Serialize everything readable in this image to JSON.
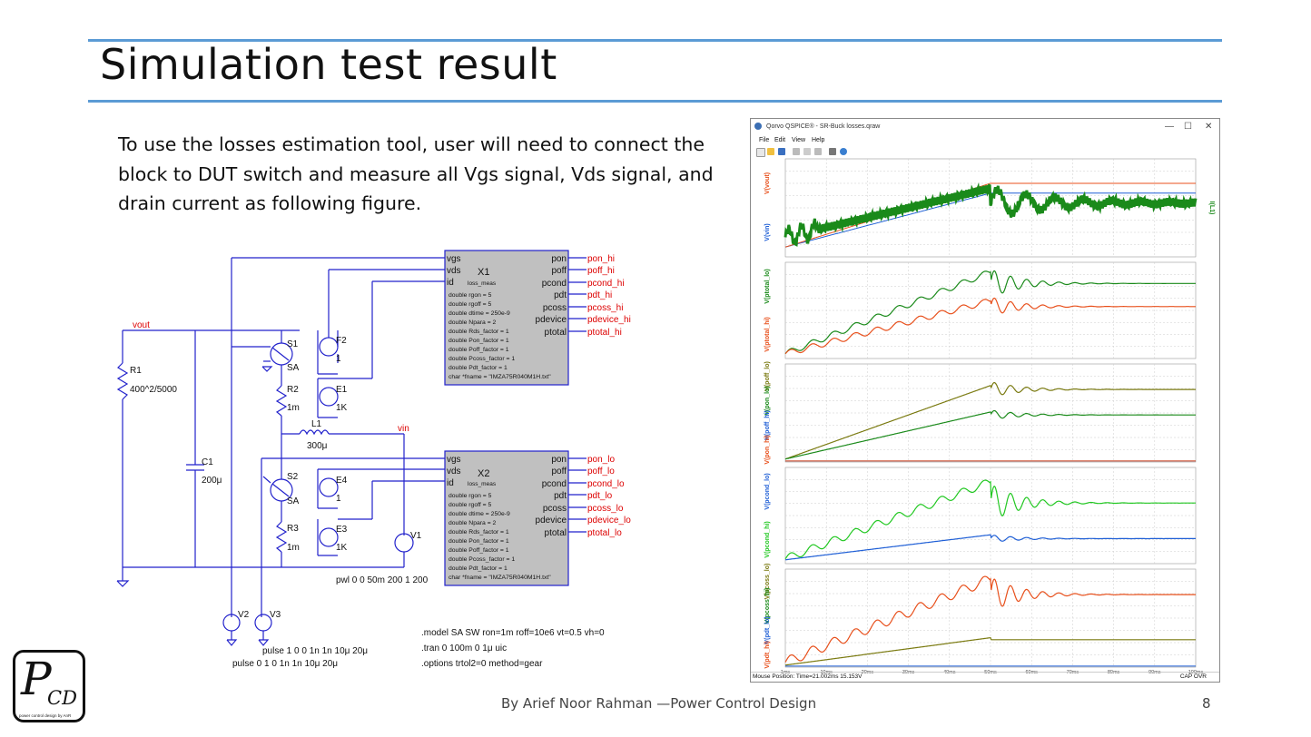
{
  "slide": {
    "title": "Simulation test result",
    "paragraph": "To use the losses estimation tool, user will need to connect the block to DUT switch and measure all Vgs signal, Vds signal, and drain current as following figure.",
    "footer": "By Arief Noor Rahman —Power Control Design",
    "page_number": "8",
    "logo": {
      "letter_p": "P",
      "letters_cd": "CD",
      "tagline": "power control design by AnR"
    },
    "accent_color": "#5b9bd5"
  },
  "schematic": {
    "net_vout": "vout",
    "net_vin": "vin",
    "r1": {
      "name": "R1",
      "value": "400^2/5000"
    },
    "c1": {
      "name": "C1",
      "value": "200μ"
    },
    "s1": {
      "name": "S1",
      "model": "SA"
    },
    "s2": {
      "name": "S2",
      "model": "SA"
    },
    "f2": {
      "name": "F2",
      "value": "1"
    },
    "e1": {
      "name": "E1",
      "value": "1K"
    },
    "e4": {
      "name": "E4",
      "value": "1"
    },
    "e3": {
      "name": "E3",
      "value": "1K"
    },
    "r2": {
      "name": "R2",
      "value": "1m"
    },
    "r3": {
      "name": "R3",
      "value": "1m"
    },
    "l1": {
      "name": "L1",
      "value": "300μ"
    },
    "v1": {
      "name": "V1",
      "value": "pwl 0 0 50m 200 1 200"
    },
    "v2": {
      "name": "V2",
      "value": "pulse 0 1 0 1n 1n 10μ 20μ"
    },
    "v3": {
      "name": "V3",
      "value": "pulse 1 0 0 1n 1n 10μ 20μ"
    },
    "directives": [
      ".model SA SW ron=1m roff=10e6 vt=0.5 vh=0",
      ".tran 0 100m 0 1μ uic",
      ".options trtol2=0 method=gear"
    ],
    "blocks": [
      {
        "name": "X1",
        "type": "loss_meas",
        "left_pins": [
          "vgs",
          "vds",
          "id"
        ],
        "params": [
          "double rgon = 5",
          "double rgoff = 5",
          "double dtime = 250e-9",
          "double Npara = 2",
          "double Rds_factor = 1",
          "double Pon_factor = 1",
          "double Poff_factor = 1",
          "double Pcoss_factor = 1",
          "double Pdt_factor = 1",
          "char *fname = \"IMZA75R040M1H.txt\""
        ],
        "right_pins": [
          "pon",
          "poff",
          "pcond",
          "pdt",
          "pcoss",
          "pdevice",
          "ptotal"
        ],
        "nets": [
          "pon_hi",
          "poff_hi",
          "pcond_hi",
          "pdt_hi",
          "pcoss_hi",
          "pdevice_hi",
          "ptotal_hi"
        ]
      },
      {
        "name": "X2",
        "type": "loss_meas",
        "left_pins": [
          "vgs",
          "vds",
          "id"
        ],
        "params": [
          "double rgon = 5",
          "double rgoff = 5",
          "double dtime = 250e-9",
          "double Npara = 2",
          "double Rds_factor = 1",
          "double Pon_factor = 1",
          "double Poff_factor = 1",
          "double Pcoss_factor = 1",
          "double Pdt_factor = 1",
          "char *fname = \"IMZA75R040M1H.txt\""
        ],
        "right_pins": [
          "pon",
          "poff",
          "pcond",
          "pdt",
          "pcoss",
          "pdevice",
          "ptotal"
        ],
        "nets": [
          "pon_lo",
          "poff_lo",
          "pcond_lo",
          "pdt_lo",
          "pcoss_lo",
          "pdevice_lo",
          "ptotal_lo"
        ]
      }
    ],
    "colors": {
      "wire": "#2222cc",
      "net_label": "#dd0000",
      "block_fill": "#c0c0c0"
    }
  },
  "waveform_window": {
    "title": "Qorvo QSPICE® - SR-Buck losses.qraw",
    "menu": [
      "File",
      "Edit",
      "View",
      "Help"
    ],
    "controls": {
      "minimize": "—",
      "maximize": "☐",
      "close": "✕"
    },
    "panes": [
      {
        "left_labels": [
          {
            "text": "V(vout)",
            "color": "#e8501c"
          },
          {
            "text": "V(vin)",
            "color": "#1f5fd6"
          }
        ],
        "right_label": {
          "text": "I(L1)",
          "color": "#1a8a1a"
        }
      },
      {
        "left_labels": [
          {
            "text": "V(ptotal_lo)",
            "color": "#1a8a1a"
          },
          {
            "text": "V(ptotal_hi)",
            "color": "#e8501c"
          }
        ]
      },
      {
        "left_labels": [
          {
            "text": "V(poff_lo)",
            "color": "#7a7a10"
          },
          {
            "text": "V(pon_lo)",
            "color": "#1a8a1a"
          },
          {
            "text": "V(poff_hi)",
            "color": "#1f5fd6"
          },
          {
            "text": "V(pon_hi)",
            "color": "#e8501c"
          }
        ]
      },
      {
        "left_labels": [
          {
            "text": "V(pcond_lo)",
            "color": "#1f5fd6"
          },
          {
            "text": "V(pcond_hi)",
            "color": "#22c822"
          }
        ]
      },
      {
        "left_labels": [
          {
            "text": "V(pcoss_lo)",
            "color": "#7a7a10"
          },
          {
            "text": "V(pcoss_hi)",
            "color": "#1a8a1a"
          },
          {
            "text": "V(pdt_lo)",
            "color": "#1f5fd6"
          },
          {
            "text": "V(pdt_hi)",
            "color": "#e8501c"
          }
        ]
      }
    ],
    "x_ticks": [
      "1ms",
      "10ms",
      "20ms",
      "30ms",
      "40ms",
      "50ms",
      "60ms",
      "70ms",
      "80ms",
      "90ms",
      "100ms"
    ],
    "status_left": "Mouse Position: Time=21.002ms  15.153V",
    "status_right": "CAP  OVR"
  }
}
